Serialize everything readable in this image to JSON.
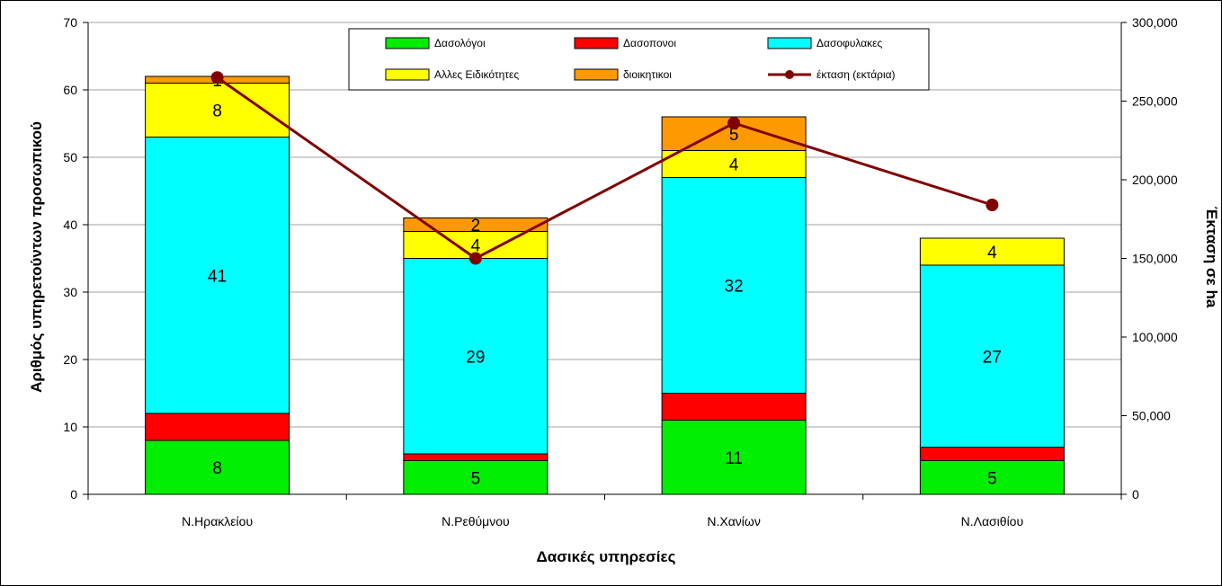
{
  "chart_data": {
    "type": "bar",
    "stacked": true,
    "title": "",
    "xlabel": "Δασικές υπηρεσίες",
    "ylabel": "Αριθμός υπηρετούντων προσωπικού",
    "y2label": "Έκταση σε ha",
    "ylim": [
      0,
      70
    ],
    "yticks": [
      0,
      10,
      20,
      30,
      40,
      50,
      60,
      70
    ],
    "y2lim": [
      0,
      300000
    ],
    "y2ticks": [
      "0",
      "50,000",
      "100,000",
      "150,000",
      "200,000",
      "250,000",
      "300,000"
    ],
    "grid": true,
    "legend_position": "top-center",
    "categories": [
      "Ν.Ηρακλείου",
      "Ν.Ρεθύμνου",
      "Ν.Χανίων",
      "Ν.Λασιθίου"
    ],
    "series": [
      {
        "name": "Δασολόγοι",
        "color": "#00ee00",
        "values": [
          8,
          5,
          11,
          5
        ],
        "labels": [
          "8",
          "5",
          "11",
          "5"
        ]
      },
      {
        "name": "Δασοπονοι",
        "color": "#ff0000",
        "values": [
          4,
          1,
          4,
          2
        ],
        "labels": [
          "",
          "",
          "",
          ""
        ]
      },
      {
        "name": "Δασοφυλακες",
        "color": "#00ffff",
        "values": [
          41,
          29,
          32,
          27
        ],
        "labels": [
          "41",
          "29",
          "32",
          "27"
        ]
      },
      {
        "name": "Αλλες Ειδικότητες",
        "color": "#ffff00",
        "values": [
          8,
          4,
          4,
          4
        ],
        "labels": [
          "8",
          "4",
          "4",
          "4"
        ]
      },
      {
        "name": "διοικητικοι",
        "color": "#ff9900",
        "values": [
          1,
          2,
          5,
          0
        ],
        "labels": [
          "1",
          "2",
          "5",
          ""
        ]
      }
    ],
    "line_series": {
      "name": "έκταση (εκτάρια)",
      "color": "#800000",
      "axis": "right",
      "values": [
        265000,
        150000,
        236000,
        184000
      ]
    }
  }
}
